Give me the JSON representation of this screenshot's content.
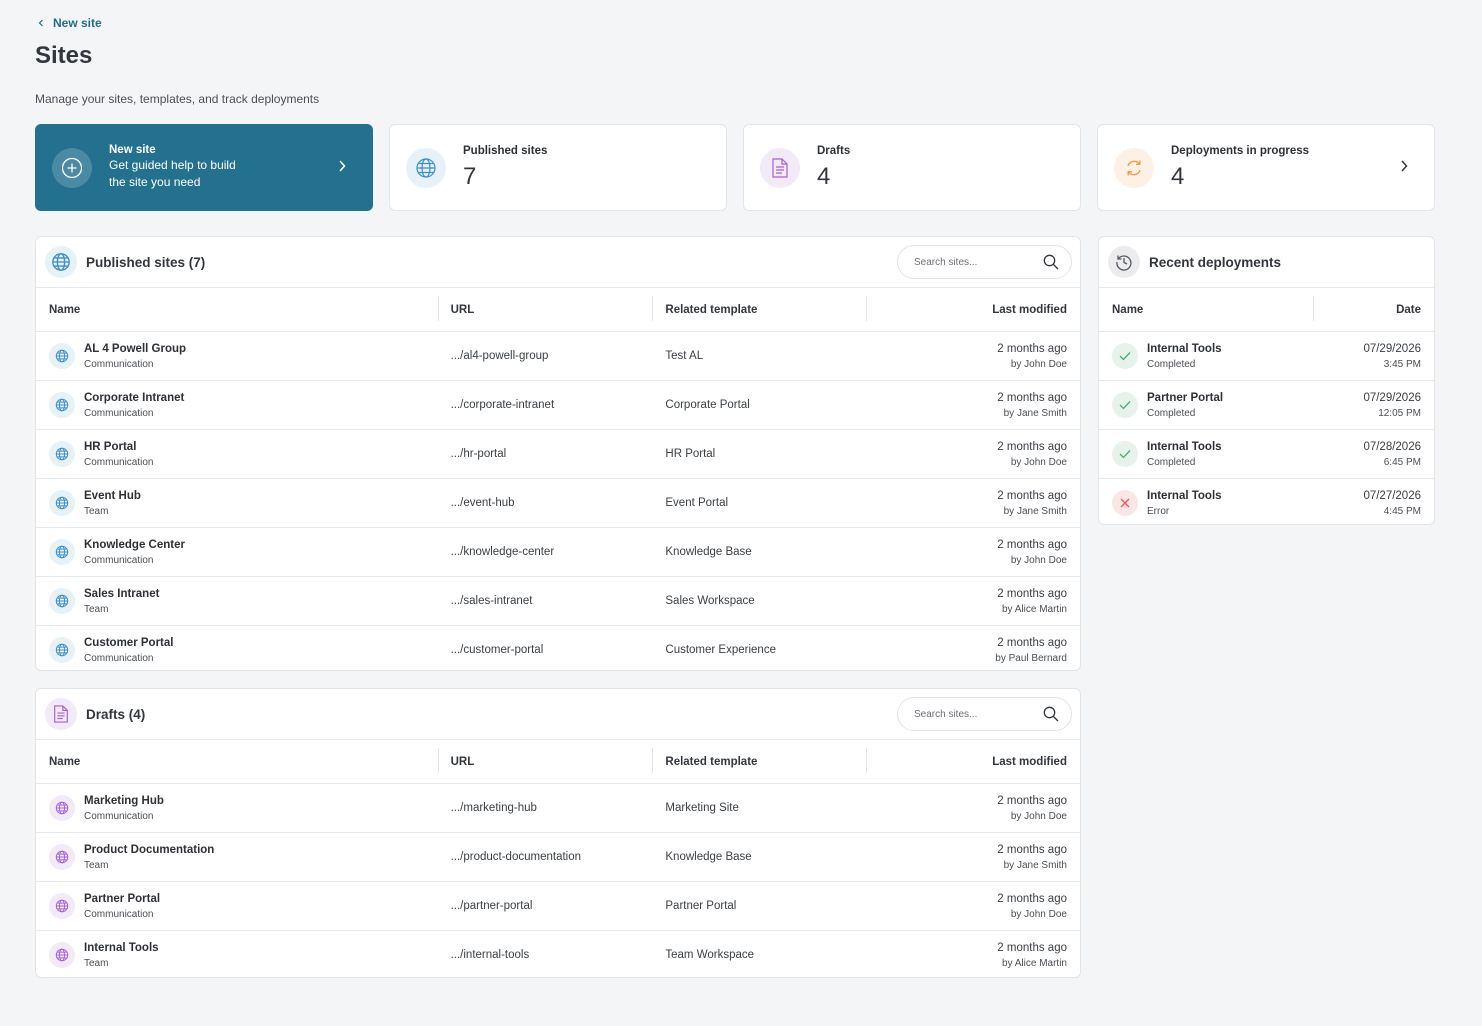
{
  "header": {
    "back_link": "New site",
    "title": "Sites",
    "subtitle": "Manage your sites, templates, and track deployments"
  },
  "cards": {
    "new_site": {
      "title": "New site",
      "text": "Get guided help to build the site you need"
    },
    "published": {
      "label": "Published sites",
      "value": 7
    },
    "drafts": {
      "label": "Drafts",
      "value": 4
    },
    "deployments": {
      "label": "Deployments in progress",
      "value": 4
    }
  },
  "published": {
    "title": "Published sites (7)",
    "search_placeholder": "Search sites...",
    "columns": [
      "Name",
      "URL",
      "Related template",
      "Last modified"
    ],
    "rows": [
      {
        "name": "AL 4 Powell Group",
        "type": "Communication",
        "url": ".../al4-powell-group",
        "template": "Test AL",
        "modified": "2 months ago",
        "by": "by John Doe"
      },
      {
        "name": "Corporate Intranet",
        "type": "Communication",
        "url": ".../corporate-intranet",
        "template": "Corporate Portal",
        "modified": "2 months ago",
        "by": "by Jane Smith"
      },
      {
        "name": "HR Portal",
        "type": "Communication",
        "url": ".../hr-portal",
        "template": "HR Portal",
        "modified": "2 months ago",
        "by": "by John Doe"
      },
      {
        "name": "Event Hub",
        "type": "Team",
        "url": ".../event-hub",
        "template": "Event Portal",
        "modified": "2 months ago",
        "by": "by Jane Smith"
      },
      {
        "name": "Knowledge Center",
        "type": "Communication",
        "url": ".../knowledge-center",
        "template": "Knowledge Base",
        "modified": "2 months ago",
        "by": "by John Doe"
      },
      {
        "name": "Sales Intranet",
        "type": "Team",
        "url": ".../sales-intranet",
        "template": "Sales Workspace",
        "modified": "2 months ago",
        "by": "by Alice Martin"
      },
      {
        "name": "Customer Portal",
        "type": "Communication",
        "url": ".../customer-portal",
        "template": "Customer Experience",
        "modified": "2 months ago",
        "by": "by Paul Bernard"
      }
    ]
  },
  "drafts": {
    "title": "Drafts (4)",
    "search_placeholder": "Search sites...",
    "columns": [
      "Name",
      "URL",
      "Related template",
      "Last modified"
    ],
    "rows": [
      {
        "name": "Marketing Hub",
        "type": "Communication",
        "url": ".../marketing-hub",
        "template": "Marketing Site",
        "modified": "2 months ago",
        "by": "by John Doe"
      },
      {
        "name": "Product Documentation",
        "type": "Team",
        "url": ".../product-documentation",
        "template": "Knowledge Base",
        "modified": "2 months ago",
        "by": "by Jane Smith"
      },
      {
        "name": "Partner Portal",
        "type": "Communication",
        "url": ".../partner-portal",
        "template": "Partner Portal",
        "modified": "2 months ago",
        "by": "by John Doe"
      },
      {
        "name": "Internal Tools",
        "type": "Team",
        "url": ".../internal-tools",
        "template": "Team Workspace",
        "modified": "2 months ago",
        "by": "by Alice Martin"
      }
    ]
  },
  "recent_deployments": {
    "title": "Recent deployments",
    "columns": [
      "Name",
      "Date"
    ],
    "rows": [
      {
        "name": "Internal Tools",
        "status": "Completed",
        "date": "07/29/2026",
        "time": "3:45 PM"
      },
      {
        "name": "Partner Portal",
        "status": "Completed",
        "date": "07/29/2026",
        "time": "12:05 PM"
      },
      {
        "name": "Internal Tools",
        "status": "Completed",
        "date": "07/28/2026",
        "time": "6:45 PM"
      },
      {
        "name": "Internal Tools",
        "status": "Error",
        "date": "07/27/2026",
        "time": "4:45 PM"
      }
    ]
  }
}
